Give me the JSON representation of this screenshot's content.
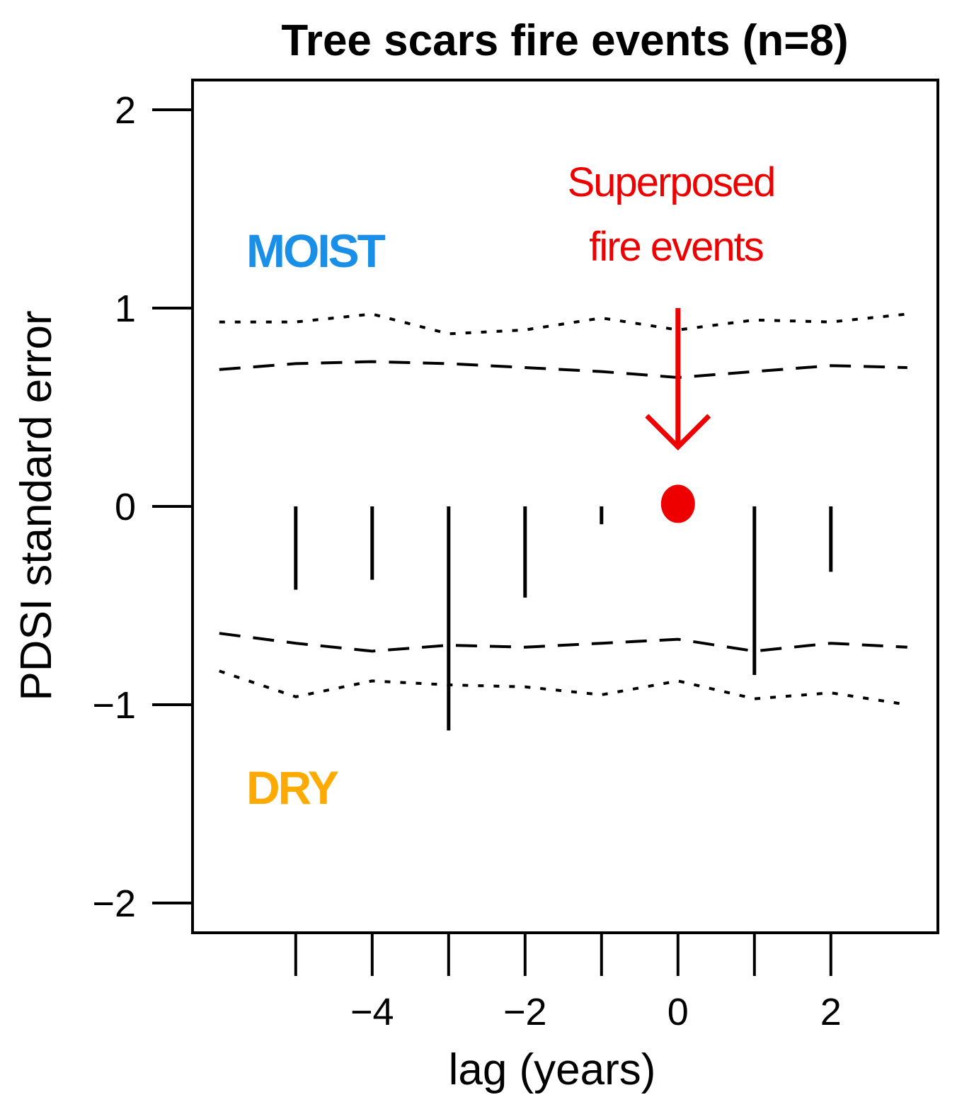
{
  "chart_data": {
    "type": "bar",
    "title": "Tree scars fire events (n=8)",
    "xlabel": "lag (years)",
    "ylabel": "PDSI standard error",
    "xlim": [
      -6.35,
      3.4
    ],
    "ylim": [
      -2.15,
      2.15
    ],
    "x_ticks": [
      -4,
      -2,
      0,
      2
    ],
    "y_ticks": [
      -2,
      -1,
      0,
      1,
      2
    ],
    "lags": [
      -5,
      -4,
      -3,
      -2,
      -1,
      0,
      1,
      2
    ],
    "values": [
      -0.42,
      -0.37,
      -1.13,
      -0.46,
      -0.09,
      0.02,
      -0.85,
      -0.33
    ],
    "event_lag": 0,
    "event_value": 0.02,
    "x_tick_marks": [
      -5,
      -4,
      -3,
      -2,
      -1,
      0,
      1,
      2
    ],
    "confidence_bands": [
      {
        "style": "dotted",
        "x": [
          -6,
          -5,
          -4,
          -3,
          -2,
          -1,
          0,
          1,
          2,
          3
        ],
        "y": [
          0.93,
          0.93,
          0.97,
          0.87,
          0.89,
          0.95,
          0.89,
          0.94,
          0.93,
          0.97
        ]
      },
      {
        "style": "dashed",
        "x": [
          -6,
          -5,
          -4,
          -3,
          -2,
          -1,
          0,
          1,
          2,
          3
        ],
        "y": [
          0.69,
          0.72,
          0.73,
          0.72,
          0.7,
          0.68,
          0.65,
          0.68,
          0.71,
          0.7
        ]
      },
      {
        "style": "dashed",
        "x": [
          -6,
          -5,
          -4,
          -3,
          -2,
          -1,
          0,
          1,
          2,
          3
        ],
        "y": [
          -0.64,
          -0.69,
          -0.73,
          -0.7,
          -0.71,
          -0.69,
          -0.67,
          -0.73,
          -0.69,
          -0.71
        ]
      },
      {
        "style": "dotted",
        "x": [
          -6,
          -5,
          -4,
          -3,
          -2,
          -1,
          0,
          1,
          2,
          3
        ],
        "y": [
          -0.83,
          -0.96,
          -0.88,
          -0.9,
          -0.91,
          -0.95,
          -0.88,
          -0.97,
          -0.94,
          -1.0
        ]
      }
    ],
    "annotations": {
      "moist": "MOIST",
      "dry": "DRY",
      "superposed_line1": "Superposed",
      "superposed_line2": "fire events"
    },
    "colors": {
      "moist": "#1a8fe8",
      "dry": "#ffaa00",
      "event": "#ee0000",
      "ink": "#000000"
    }
  }
}
